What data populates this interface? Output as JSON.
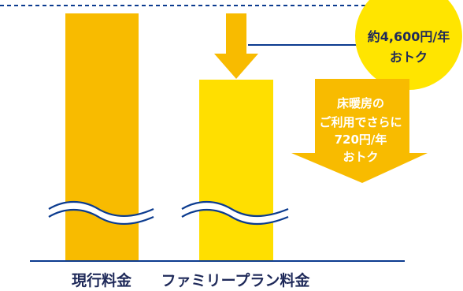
{
  "chart_data": {
    "type": "bar",
    "categories": [
      "現行料金",
      "ファミリープラン料金"
    ],
    "title": "",
    "xlabel": "",
    "ylabel": "",
    "axis_break": true,
    "grid": false,
    "legend": "none",
    "colors": {
      "bar_current": "#f8bb00",
      "bar_family": "#ffdf00",
      "arrow_down": "#f8bb00",
      "arrow_big": "#f8bb00",
      "circle": "#ffe500",
      "line": "#0b3b8f",
      "text_dark": "#1f2a5a",
      "text_white": "#ffffff"
    },
    "annotations": {
      "saving_line1": "約4,600円/年",
      "saving_line2": "おトク",
      "floor_line1": "床暖房の",
      "floor_line2": "ご利用でさらに",
      "floor_line3": "720円/年",
      "floor_line4": "おトク"
    }
  }
}
